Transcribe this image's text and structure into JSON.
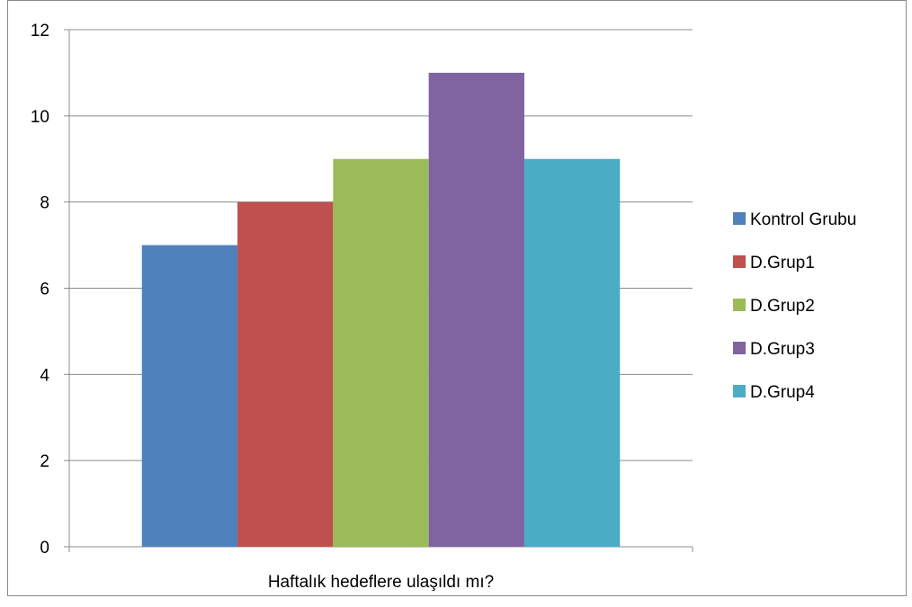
{
  "chart_data": {
    "type": "bar",
    "title": "",
    "xlabel": "",
    "ylabel": "",
    "categories": [
      "Haftalık hedeflere ulaşıldı mı?"
    ],
    "series": [
      {
        "name": "Kontrol Grubu",
        "values": [
          7
        ],
        "color": "#4F81BD"
      },
      {
        "name": "D.Grup1",
        "values": [
          8
        ],
        "color": "#C0504D"
      },
      {
        "name": "D.Grup2",
        "values": [
          9
        ],
        "color": "#9BBB59"
      },
      {
        "name": "D.Grup3",
        "values": [
          11
        ],
        "color": "#8064A2"
      },
      {
        "name": "D.Grup4",
        "values": [
          9
        ],
        "color": "#4BACC6"
      }
    ],
    "ylim": [
      0,
      12
    ],
    "yticks": [
      0,
      2,
      4,
      6,
      8,
      10,
      12
    ],
    "grid": true,
    "legend_position": "right"
  }
}
